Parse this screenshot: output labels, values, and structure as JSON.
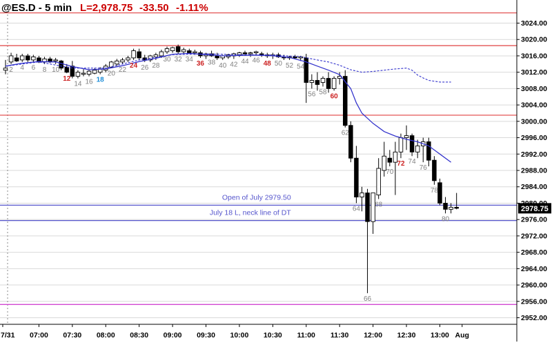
{
  "header": {
    "symbol": "@ES.D - 5 min",
    "last": "L=2,978.75",
    "change": "-33.50",
    "change_pct": "-1.11%"
  },
  "colors": {
    "background": "#ffffff",
    "grid": "#d9d9d9",
    "bull_candle": "#ffffff",
    "bear_candle": "#000000",
    "ema": "#3333cc",
    "dashed_line": "#3333cc",
    "red_level": "#e04040",
    "blue_level": "#5555cc",
    "magenta_level": "#cc33cc",
    "label_gray": "#808080",
    "label_red": "#cc2222",
    "label_blue": "#1a8cd8",
    "header_red": "#cc0000"
  },
  "chart_data": {
    "type": "candlestick",
    "title": "@ES.D - 5 min",
    "y_axis": {
      "ticks": [
        3024,
        3020,
        3016,
        3012,
        3008,
        3004,
        3000,
        2996,
        2992,
        2988,
        2984,
        2980,
        2976,
        2972,
        2968,
        2964,
        2960,
        2956,
        2952
      ],
      "tick_labels": [
        "3024.00",
        "3020.00",
        "3016.00",
        "3012.00",
        "3008.00",
        "3004.00",
        "3000.00",
        "2996.00",
        "2992.00",
        "2988.00",
        "2984.00",
        "2980.00",
        "2976.00",
        "2972.00",
        "2968.00",
        "2964.00",
        "2960.00",
        "2956.00",
        "2952.00"
      ],
      "range": [
        2950,
        3028
      ],
      "last_price_label": "2978.75",
      "last_price": 2978.75
    },
    "x_axis": {
      "tick_labels": [
        "7/31",
        "07:00",
        "07:30",
        "08:00",
        "08:30",
        "09:00",
        "09:30",
        "10:00",
        "10:30",
        "11:00",
        "11:30",
        "12:00",
        "12:30",
        "13:00",
        "Aug"
      ],
      "tick_bars": [
        -0.5,
        6,
        12,
        18,
        24,
        30,
        36,
        42,
        48,
        54,
        60,
        66,
        72,
        78,
        82
      ]
    },
    "bars": [
      {
        "o": 3012.5,
        "h": 3015,
        "l": 3011.5,
        "c": 3013
      },
      {
        "o": 3014.5,
        "h": 3016.75,
        "l": 3014,
        "c": 3016
      },
      {
        "o": 3015.5,
        "h": 3016.5,
        "l": 3014.5,
        "c": 3014.75
      },
      {
        "o": 3015,
        "h": 3016.5,
        "l": 3014.5,
        "c": 3016
      },
      {
        "o": 3016,
        "h": 3016.5,
        "l": 3014.5,
        "c": 3015
      },
      {
        "o": 3015,
        "h": 3016.25,
        "l": 3014.5,
        "c": 3015.75
      },
      {
        "o": 3015.5,
        "h": 3016,
        "l": 3014.25,
        "c": 3014.5
      },
      {
        "o": 3014.5,
        "h": 3015.75,
        "l": 3014,
        "c": 3015.25
      },
      {
        "o": 3015.25,
        "h": 3015.75,
        "l": 3014.25,
        "c": 3014.5
      },
      {
        "o": 3014.75,
        "h": 3015.5,
        "l": 3014,
        "c": 3015
      },
      {
        "o": 3014.75,
        "h": 3015,
        "l": 3012.5,
        "c": 3013
      },
      {
        "o": 3013.25,
        "h": 3014,
        "l": 3011.75,
        "c": 3012
      },
      {
        "o": 3013.5,
        "h": 3014.75,
        "l": 3010.5,
        "c": 3011
      },
      {
        "o": 3011,
        "h": 3012.5,
        "l": 3010.5,
        "c": 3012
      },
      {
        "o": 3011.5,
        "h": 3012.75,
        "l": 3011,
        "c": 3011.75
      },
      {
        "o": 3011.5,
        "h": 3012.75,
        "l": 3011,
        "c": 3012.25
      },
      {
        "o": 3011.75,
        "h": 3013,
        "l": 3011.5,
        "c": 3012.5
      },
      {
        "o": 3012,
        "h": 3013.25,
        "l": 3011.5,
        "c": 3012.75
      },
      {
        "o": 3012.5,
        "h": 3014,
        "l": 3012,
        "c": 3013.5
      },
      {
        "o": 3013.25,
        "h": 3014.75,
        "l": 3013,
        "c": 3014.5
      },
      {
        "o": 3014,
        "h": 3015.25,
        "l": 3013.5,
        "c": 3014.75
      },
      {
        "o": 3014.5,
        "h": 3015.5,
        "l": 3014,
        "c": 3015
      },
      {
        "o": 3015,
        "h": 3016,
        "l": 3014.5,
        "c": 3015.5
      },
      {
        "o": 3015.5,
        "h": 3017.75,
        "l": 3015,
        "c": 3017.25
      },
      {
        "o": 3017,
        "h": 3017.75,
        "l": 3015,
        "c": 3015.5
      },
      {
        "o": 3015.5,
        "h": 3016.25,
        "l": 3014.5,
        "c": 3015
      },
      {
        "o": 3015,
        "h": 3016.25,
        "l": 3014.5,
        "c": 3016
      },
      {
        "o": 3015.75,
        "h": 3016.75,
        "l": 3015,
        "c": 3016.25
      },
      {
        "o": 3016,
        "h": 3017.5,
        "l": 3015.5,
        "c": 3017
      },
      {
        "o": 3017,
        "h": 3018.25,
        "l": 3016.5,
        "c": 3017.75
      },
      {
        "o": 3017.25,
        "h": 3018.25,
        "l": 3016.75,
        "c": 3018
      },
      {
        "o": 3018.25,
        "h": 3018.75,
        "l": 3016.5,
        "c": 3017
      },
      {
        "o": 3017,
        "h": 3018,
        "l": 3016.5,
        "c": 3017.5
      },
      {
        "o": 3017.25,
        "h": 3017.75,
        "l": 3016.5,
        "c": 3016.75
      },
      {
        "o": 3016.75,
        "h": 3017.5,
        "l": 3016.25,
        "c": 3017
      },
      {
        "o": 3016.75,
        "h": 3017.25,
        "l": 3015.5,
        "c": 3016
      },
      {
        "o": 3016,
        "h": 3016.75,
        "l": 3015.25,
        "c": 3016.5
      },
      {
        "o": 3016.5,
        "h": 3017.25,
        "l": 3015.75,
        "c": 3016
      },
      {
        "o": 3016,
        "h": 3016.75,
        "l": 3015,
        "c": 3015.5
      },
      {
        "o": 3015.5,
        "h": 3016.25,
        "l": 3015,
        "c": 3016
      },
      {
        "o": 3015.75,
        "h": 3016.5,
        "l": 3015.25,
        "c": 3016.25
      },
      {
        "o": 3016,
        "h": 3016.75,
        "l": 3015.25,
        "c": 3016.5
      },
      {
        "o": 3016.25,
        "h": 3017,
        "l": 3015.75,
        "c": 3016.75
      },
      {
        "o": 3016.75,
        "h": 3017.25,
        "l": 3016,
        "c": 3016.5
      },
      {
        "o": 3016.5,
        "h": 3017,
        "l": 3015.75,
        "c": 3016.75
      },
      {
        "o": 3016.75,
        "h": 3017.25,
        "l": 3016.25,
        "c": 3017
      },
      {
        "o": 3016.5,
        "h": 3017,
        "l": 3015.75,
        "c": 3016.25
      },
      {
        "o": 3016.25,
        "h": 3016.75,
        "l": 3015.5,
        "c": 3016
      },
      {
        "o": 3016,
        "h": 3016.75,
        "l": 3015.25,
        "c": 3016.25
      },
      {
        "o": 3016.25,
        "h": 3016.75,
        "l": 3015.5,
        "c": 3015.75
      },
      {
        "o": 3015.75,
        "h": 3016.25,
        "l": 3015,
        "c": 3015.5
      },
      {
        "o": 3015.5,
        "h": 3016,
        "l": 3015,
        "c": 3015.75
      },
      {
        "o": 3015.75,
        "h": 3016.25,
        "l": 3015.25,
        "c": 3015.5
      },
      {
        "o": 3015.5,
        "h": 3016,
        "l": 3014.75,
        "c": 3015.75
      },
      {
        "o": 3015.5,
        "h": 3016.5,
        "l": 3004.5,
        "c": 3009.5
      },
      {
        "o": 3009.5,
        "h": 3011.5,
        "l": 3008,
        "c": 3010
      },
      {
        "o": 3010,
        "h": 3012,
        "l": 3007.5,
        "c": 3009
      },
      {
        "o": 3009.5,
        "h": 3011,
        "l": 3008.5,
        "c": 3010.5
      },
      {
        "o": 3010.5,
        "h": 3012,
        "l": 3007,
        "c": 3008
      },
      {
        "o": 3008,
        "h": 3011,
        "l": 3007.5,
        "c": 3010.5
      },
      {
        "o": 3010.5,
        "h": 3012,
        "l": 3009,
        "c": 3011
      },
      {
        "o": 3011,
        "h": 3012.5,
        "l": 2998.5,
        "c": 2999
      },
      {
        "o": 2999,
        "h": 3000,
        "l": 2990,
        "c": 2991
      },
      {
        "o": 2991,
        "h": 2994,
        "l": 2980,
        "c": 2981.5
      },
      {
        "o": 2981.5,
        "h": 2984,
        "l": 2978,
        "c": 2982.5
      },
      {
        "o": 2982.5,
        "h": 2983.5,
        "l": 2958,
        "c": 2975.5
      },
      {
        "o": 2975.5,
        "h": 2982.5,
        "l": 2972.5,
        "c": 2982.5
      },
      {
        "o": 2982,
        "h": 2991,
        "l": 2981,
        "c": 2988.5
      },
      {
        "o": 2988,
        "h": 2995,
        "l": 2986.5,
        "c": 2991.5
      },
      {
        "o": 2991,
        "h": 2993,
        "l": 2989,
        "c": 2990
      },
      {
        "o": 2990,
        "h": 2995,
        "l": 2982,
        "c": 2992.5
      },
      {
        "o": 2992.5,
        "h": 2997,
        "l": 2991,
        "c": 2996
      },
      {
        "o": 2996,
        "h": 2999,
        "l": 2993,
        "c": 2996.5
      },
      {
        "o": 2996.5,
        "h": 2997,
        "l": 2991.5,
        "c": 2992.5
      },
      {
        "o": 2992.5,
        "h": 2995.5,
        "l": 2991,
        "c": 2994
      },
      {
        "o": 2994,
        "h": 2996,
        "l": 2990,
        "c": 2995
      },
      {
        "o": 2995,
        "h": 2996,
        "l": 2989,
        "c": 2990.5
      },
      {
        "o": 2990.5,
        "h": 2991.5,
        "l": 2984.5,
        "c": 2985.5
      },
      {
        "o": 2985,
        "h": 2986,
        "l": 2979.5,
        "c": 2980
      },
      {
        "o": 2980,
        "h": 2981.5,
        "l": 2977.5,
        "c": 2978.5
      },
      {
        "o": 2978.5,
        "h": 2980,
        "l": 2977.5,
        "c": 2979
      },
      {
        "o": 2979,
        "h": 2982.5,
        "l": 2978.5,
        "c": 2978.75
      }
    ],
    "ema": [
      [
        0,
        3013.5
      ],
      [
        3,
        3014.2
      ],
      [
        6,
        3014.6
      ],
      [
        9,
        3014.5
      ],
      [
        12,
        3013.4
      ],
      [
        15,
        3012.6
      ],
      [
        18,
        3012.8
      ],
      [
        21,
        3013.6
      ],
      [
        24,
        3014.6
      ],
      [
        27,
        3015.4
      ],
      [
        30,
        3016.4
      ],
      [
        33,
        3016.6
      ],
      [
        36,
        3016.3
      ],
      [
        39,
        3016
      ],
      [
        42,
        3016.1
      ],
      [
        45,
        3016.2
      ],
      [
        48,
        3016
      ],
      [
        51,
        3015.6
      ],
      [
        54,
        3014.5
      ],
      [
        56,
        3013.5
      ],
      [
        58,
        3012.5
      ],
      [
        60,
        3011.4
      ],
      [
        62,
        3008
      ],
      [
        63,
        3004.5
      ],
      [
        64,
        3002
      ],
      [
        66,
        2999.5
      ],
      [
        68,
        2997.5
      ],
      [
        70,
        2996.4
      ],
      [
        72,
        2995.6
      ],
      [
        74,
        2995
      ],
      [
        76,
        2994
      ],
      [
        78,
        2992
      ],
      [
        80,
        2990
      ]
    ],
    "dashed": [
      [
        0,
        3013.5
      ],
      [
        6,
        3014.5
      ],
      [
        12,
        3013
      ],
      [
        18,
        3013
      ],
      [
        24,
        3015
      ],
      [
        30,
        3016.3
      ],
      [
        36,
        3016.5
      ],
      [
        42,
        3016.3
      ],
      [
        48,
        3016.2
      ],
      [
        53,
        3015.8
      ],
      [
        56,
        3015
      ],
      [
        58,
        3014.5
      ],
      [
        60,
        3013.7
      ],
      [
        62,
        3012.6
      ],
      [
        64,
        3012
      ],
      [
        66,
        3012.2
      ],
      [
        68,
        3012.5
      ],
      [
        70,
        3012.8
      ],
      [
        72,
        3013
      ],
      [
        73,
        3012.5
      ],
      [
        74,
        3011.3
      ],
      [
        75,
        3010.6
      ],
      [
        76,
        3010
      ],
      [
        78,
        3009.6
      ],
      [
        80,
        3009.6
      ]
    ],
    "horizontal_lines": [
      {
        "y": 3026.5,
        "color": "red"
      },
      {
        "y": 3018.5,
        "color": "red"
      },
      {
        "y": 3001.5,
        "color": "red"
      },
      {
        "y": 2979.5,
        "color": "blue"
      },
      {
        "y": 2975.75,
        "color": "blue"
      },
      {
        "y": 2955.25,
        "color": "magenta"
      }
    ],
    "bar_labels": [
      {
        "bar": 1,
        "text": "2",
        "color": "gray",
        "pos": "below"
      },
      {
        "bar": 3,
        "text": "4",
        "color": "gray",
        "pos": "below"
      },
      {
        "bar": 5,
        "text": "6",
        "color": "gray",
        "pos": "below"
      },
      {
        "bar": 7,
        "text": "8",
        "color": "gray",
        "pos": "below"
      },
      {
        "bar": 9,
        "text": "10",
        "color": "gray",
        "pos": "below"
      },
      {
        "bar": 11,
        "text": "12",
        "color": "red",
        "pos": "below"
      },
      {
        "bar": 13,
        "text": "14",
        "color": "gray",
        "pos": "below"
      },
      {
        "bar": 15,
        "text": "16",
        "color": "gray",
        "pos": "below"
      },
      {
        "bar": 17,
        "text": "18",
        "color": "blue",
        "pos": "below"
      },
      {
        "bar": 19,
        "text": "20",
        "color": "gray",
        "pos": "below"
      },
      {
        "bar": 21,
        "text": "22",
        "color": "gray",
        "pos": "below"
      },
      {
        "bar": 23,
        "text": "24",
        "color": "red",
        "pos": "below"
      },
      {
        "bar": 25,
        "text": "26",
        "color": "gray",
        "pos": "below"
      },
      {
        "bar": 27,
        "text": "28",
        "color": "gray",
        "pos": "below"
      },
      {
        "bar": 29,
        "text": "30",
        "color": "gray",
        "pos": "below"
      },
      {
        "bar": 31,
        "text": "32",
        "color": "gray",
        "pos": "below"
      },
      {
        "bar": 33,
        "text": "34",
        "color": "gray",
        "pos": "below"
      },
      {
        "bar": 35,
        "text": "36",
        "color": "red",
        "pos": "below"
      },
      {
        "bar": 37,
        "text": "38",
        "color": "gray",
        "pos": "below"
      },
      {
        "bar": 39,
        "text": "40",
        "color": "gray",
        "pos": "below"
      },
      {
        "bar": 41,
        "text": "42",
        "color": "gray",
        "pos": "below"
      },
      {
        "bar": 43,
        "text": "44",
        "color": "gray",
        "pos": "below"
      },
      {
        "bar": 45,
        "text": "46",
        "color": "gray",
        "pos": "below"
      },
      {
        "bar": 47,
        "text": "48",
        "color": "red",
        "pos": "below"
      },
      {
        "bar": 49,
        "text": "50",
        "color": "gray",
        "pos": "below"
      },
      {
        "bar": 51,
        "text": "52",
        "color": "gray",
        "pos": "below"
      },
      {
        "bar": 53,
        "text": "54",
        "color": "gray",
        "pos": "below"
      },
      {
        "bar": 55,
        "text": "56",
        "color": "gray",
        "pos": "below"
      },
      {
        "bar": 57,
        "text": "58",
        "color": "gray",
        "pos": "below"
      },
      {
        "bar": 59,
        "text": "60",
        "color": "red",
        "pos": "below"
      },
      {
        "bar": 61,
        "text": "62",
        "color": "gray",
        "pos": "below"
      },
      {
        "bar": 63,
        "text": "64",
        "color": "gray",
        "pos": "below"
      },
      {
        "bar": 65,
        "text": "66",
        "color": "gray",
        "pos": "below"
      },
      {
        "bar": 67,
        "text": "68",
        "color": "gray",
        "pos": "below"
      },
      {
        "bar": 69,
        "text": "70",
        "color": "gray",
        "pos": "below"
      },
      {
        "bar": 71,
        "text": "72",
        "color": "red",
        "pos": "below"
      },
      {
        "bar": 73,
        "text": "74",
        "color": "gray",
        "pos": "below"
      },
      {
        "bar": 75,
        "text": "76",
        "color": "gray",
        "pos": "below"
      },
      {
        "bar": 77,
        "text": "78",
        "color": "gray",
        "pos": "below"
      },
      {
        "bar": 79,
        "text": "80",
        "color": "gray",
        "pos": "below"
      }
    ],
    "annotations": [
      {
        "text": "Open of July 2979.50",
        "color": "blue",
        "bar": 53,
        "y": 2979.5,
        "anchor": "end"
      },
      {
        "text": "July 18 L, neck line of DT",
        "color": "blue",
        "bar": 53,
        "y": 2975.75,
        "anchor": "end"
      }
    ]
  }
}
